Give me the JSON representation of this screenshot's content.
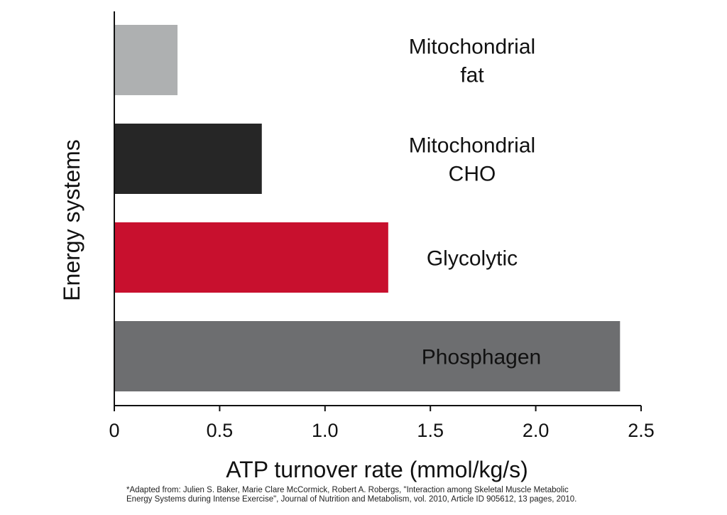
{
  "chart_data": {
    "type": "bar",
    "orientation": "horizontal",
    "categories": [
      "Mitochondrial fat",
      "Mitochondrial CHO",
      "Glycolytic",
      "Phosphagen"
    ],
    "category_label_lines": [
      [
        "Mitochondrial",
        "fat"
      ],
      [
        "Mitochondrial",
        "CHO"
      ],
      [
        "Glycolytic"
      ],
      [
        "Phosphagen"
      ]
    ],
    "values": [
      0.3,
      0.7,
      1.3,
      2.4
    ],
    "bar_colors": [
      "#aeb0b1",
      "#262626",
      "#c8102e",
      "#6d6e70"
    ],
    "label_colors": [
      "#111111",
      "#111111",
      "#111111",
      "#e6e6e6"
    ],
    "xlabel": "ATP turnover rate (mmol/kg/s)",
    "ylabel": "Energy systems",
    "xlim": [
      0,
      2.5
    ],
    "xticks": [
      0,
      0.5,
      1.0,
      1.5,
      2.0,
      2.5
    ],
    "xtick_labels": [
      "0",
      "0.5",
      "1.0",
      "1.5",
      "2.0",
      "2.5"
    ],
    "grid": false
  },
  "footnote": {
    "line1": "*Adapted from: Julien S. Baker, Marie Clare McCormick, Robert A. Robergs, \"Interaction among Skeletal Muscle Metabolic",
    "line2": "Energy Systems during Intense Exercise\", Journal of Nutrition and Metabolism, vol. 2010, Article ID 905612, 13 pages, 2010."
  }
}
